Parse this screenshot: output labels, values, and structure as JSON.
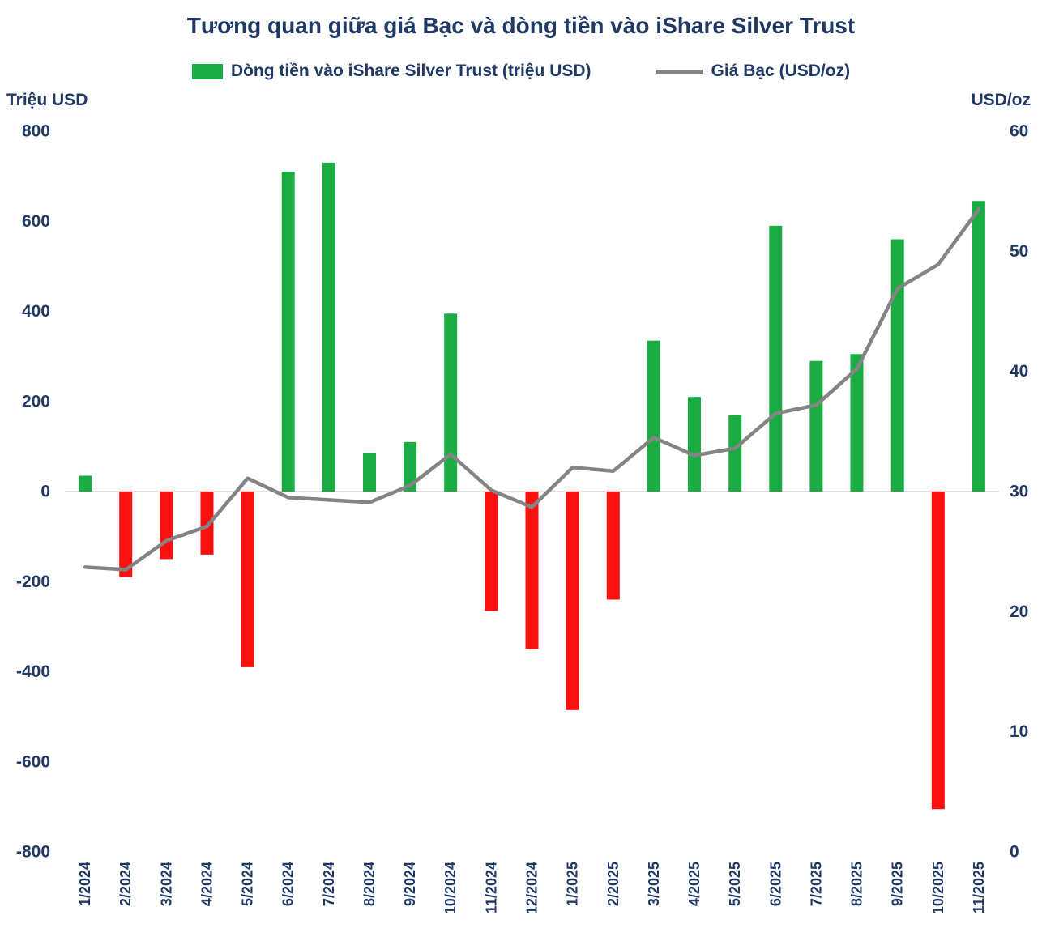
{
  "colors": {
    "text": "#1f3864",
    "positive_bar": "#1cac44",
    "negative_bar": "#fb0f0f",
    "line": "#848484",
    "gridline": "#d6d6d6",
    "background": "#ffffff"
  },
  "chart_data": {
    "type": "bar",
    "subtype": "combo-bar-line-dual-axis",
    "title": "Tương quan giữa giá Bạc và dòng tiền vào iShare Silver Trust",
    "legend_position": "top",
    "grid": "zero-line-only",
    "categories": [
      "1/2024",
      "2/2024",
      "3/2024",
      "4/2024",
      "5/2024",
      "6/2024",
      "7/2024",
      "8/2024",
      "9/2024",
      "10/2024",
      "11/2024",
      "12/2024",
      "1/2025",
      "2/2025",
      "3/2025",
      "4/2025",
      "5/2025",
      "6/2025",
      "7/2025",
      "8/2025",
      "9/2025",
      "10/2025",
      "11/2025"
    ],
    "series": [
      {
        "name": "Dòng tiền vào iShare Silver Trust (triệu USD)",
        "type": "bar",
        "axis": "left",
        "values": [
          35,
          -190,
          -150,
          -140,
          -390,
          710,
          730,
          85,
          110,
          395,
          -265,
          -350,
          -485,
          -240,
          335,
          210,
          170,
          590,
          290,
          305,
          560,
          -705,
          645
        ]
      },
      {
        "name": "Giá Bạc (USD/oz)",
        "type": "line",
        "axis": "right",
        "values": [
          23.7,
          23.5,
          25.9,
          27.1,
          31.1,
          29.5,
          29.3,
          29.1,
          30.5,
          33.1,
          30.1,
          28.7,
          32.0,
          31.7,
          34.5,
          33.0,
          33.6,
          36.5,
          37.2,
          40.2,
          46.9,
          48.9,
          53.5
        ]
      }
    ],
    "left_axis": {
      "label": "Triệu USD",
      "min": -800,
      "max": 800,
      "step": 200,
      "ticks": [
        "800",
        "600",
        "400",
        "200",
        "0",
        "-200",
        "-400",
        "-600",
        "-800"
      ]
    },
    "right_axis": {
      "label": "USD/oz",
      "min": 0,
      "max": 60,
      "step": 10,
      "ticks": [
        "60",
        "50",
        "40",
        "30",
        "20",
        "10",
        "0"
      ]
    }
  }
}
